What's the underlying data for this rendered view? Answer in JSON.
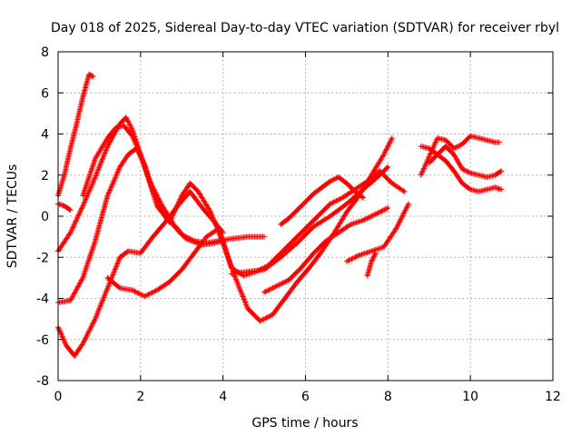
{
  "chart_data": {
    "type": "scatter",
    "title": "Day 018 of 2025, Sidereal Day-to-day VTEC variation (SDTVAR) for receiver rbyl",
    "xlabel": "GPS time / hours",
    "ylabel": "SDTVAR / TECUs",
    "xlim": [
      0,
      12
    ],
    "ylim": [
      -8,
      8
    ],
    "xticks": [
      "0",
      "2",
      "4",
      "6",
      "8",
      "10",
      "12"
    ],
    "yticks": [
      "-8",
      "-6",
      "-4",
      "-2",
      "0",
      "2",
      "4",
      "6",
      "8"
    ],
    "grid": true,
    "marker": "+",
    "color": "#ff0000",
    "series": [
      {
        "x": [
          0.0,
          0.15,
          0.3,
          0.45,
          0.6,
          0.75,
          0.85
        ],
        "y": [
          1.0,
          2.0,
          3.3,
          4.5,
          5.8,
          6.9,
          6.8
        ]
      },
      {
        "x": [
          0.0,
          0.15,
          0.3
        ],
        "y": [
          0.6,
          0.5,
          0.3
        ]
      },
      {
        "x": [
          0.0,
          0.3,
          0.6,
          0.9,
          1.2,
          1.5,
          1.65,
          1.8,
          2.0,
          2.2,
          2.5,
          2.8,
          3.1,
          3.5,
          3.8,
          4.0
        ],
        "y": [
          -1.7,
          -0.8,
          0.5,
          1.9,
          3.4,
          4.5,
          4.8,
          4.2,
          3.0,
          1.8,
          0.6,
          -0.4,
          -1.1,
          -1.4,
          -1.3,
          -1.2
        ]
      },
      {
        "x": [
          0.0,
          0.3,
          0.6,
          0.9,
          1.2,
          1.5,
          1.7,
          1.9,
          2.1,
          2.3,
          2.6,
          3.0,
          3.3,
          3.6,
          3.9,
          4.2,
          4.6,
          5.0
        ],
        "y": [
          -4.2,
          -4.1,
          -3.0,
          -1.2,
          1.0,
          2.4,
          3.0,
          3.3,
          2.5,
          1.2,
          0.0,
          -0.9,
          -1.2,
          -1.3,
          -1.2,
          -1.1,
          -1.0,
          -1.0
        ]
      },
      {
        "x": [
          0.0,
          0.2,
          0.4,
          0.6,
          0.9,
          1.2,
          1.5,
          1.7,
          2.0,
          2.3,
          2.6,
          2.9,
          3.2,
          3.5,
          3.8,
          4.0
        ],
        "y": [
          -5.4,
          -6.3,
          -6.8,
          -6.2,
          -5.0,
          -3.5,
          -2.0,
          -1.7,
          -1.8,
          -1.0,
          -0.3,
          0.5,
          1.2,
          0.4,
          -0.3,
          -0.8
        ]
      },
      {
        "x": [
          0.6,
          0.9,
          1.2,
          1.4,
          1.6,
          1.8,
          2.0,
          2.2,
          2.4,
          2.7,
          3.0,
          3.2,
          3.4,
          3.7,
          4.0,
          4.3,
          4.6,
          4.9,
          5.2,
          5.5,
          5.8,
          6.1,
          6.4,
          6.7,
          7.0,
          7.3,
          7.6,
          7.9,
          8.1
        ],
        "y": [
          1.0,
          2.8,
          3.8,
          4.3,
          4.4,
          3.9,
          3.0,
          1.8,
          0.5,
          -0.3,
          1.0,
          1.6,
          1.2,
          0.2,
          -1.3,
          -3.0,
          -4.5,
          -5.1,
          -4.8,
          -4.0,
          -3.2,
          -2.5,
          -1.7,
          -0.8,
          0.2,
          1.0,
          2.0,
          3.0,
          3.8
        ]
      },
      {
        "x": [
          1.2,
          1.5,
          1.8,
          2.1,
          2.4,
          2.7,
          3.0,
          3.3,
          3.6,
          3.9,
          4.2,
          4.5,
          4.8,
          5.1,
          5.4,
          5.7,
          6.0,
          6.3,
          6.6,
          6.9,
          7.2,
          7.5,
          7.8,
          8.1,
          8.4
        ],
        "y": [
          -3.0,
          -3.5,
          -3.6,
          -3.9,
          -3.6,
          -3.2,
          -2.6,
          -1.8,
          -1.0,
          -0.6,
          -2.5,
          -2.9,
          -2.7,
          -2.4,
          -1.8,
          -1.2,
          -0.6,
          0.0,
          0.6,
          0.9,
          1.3,
          1.7,
          2.2,
          1.6,
          1.2
        ]
      },
      {
        "x": [
          4.2,
          4.6,
          5.0,
          5.4,
          5.8,
          6.2,
          6.6,
          7.0,
          7.4,
          7.8,
          8.0
        ],
        "y": [
          -2.8,
          -2.7,
          -2.6,
          -2.0,
          -1.3,
          -0.5,
          0.0,
          0.6,
          1.3,
          2.0,
          2.4
        ]
      },
      {
        "x": [
          5.0,
          5.3,
          5.6,
          5.9,
          6.2,
          6.5,
          6.8,
          7.1,
          7.4,
          7.7,
          8.0
        ],
        "y": [
          -3.7,
          -3.4,
          -3.1,
          -2.5,
          -1.8,
          -1.2,
          -0.8,
          -0.4,
          -0.2,
          0.1,
          0.4
        ]
      },
      {
        "x": [
          5.4,
          5.6,
          5.8,
          6.0,
          6.2,
          6.4,
          6.6,
          6.8,
          7.0,
          7.2,
          7.4
        ],
        "y": [
          -0.4,
          -0.1,
          0.3,
          0.7,
          1.1,
          1.4,
          1.7,
          1.9,
          1.6,
          1.2,
          0.9
        ]
      },
      {
        "x": [
          7.0,
          7.3,
          7.6,
          7.9,
          8.2,
          8.5
        ],
        "y": [
          -2.2,
          -1.9,
          -1.7,
          -1.5,
          -0.6,
          0.6
        ]
      },
      {
        "x": [
          7.5,
          7.6,
          7.7
        ],
        "y": [
          -2.9,
          -2.2,
          -1.8
        ]
      },
      {
        "x": [
          8.8,
          9.0,
          9.2,
          9.4,
          9.6,
          9.8,
          10.0,
          10.2,
          10.4,
          10.6,
          10.7
        ],
        "y": [
          2.0,
          2.9,
          3.8,
          3.7,
          3.3,
          3.5,
          3.9,
          3.8,
          3.7,
          3.6,
          3.6
        ]
      },
      {
        "x": [
          8.8,
          9.0,
          9.2,
          9.4,
          9.6,
          9.8,
          10.0,
          10.2,
          10.4,
          10.6,
          10.75
        ],
        "y": [
          3.4,
          3.3,
          3.0,
          2.7,
          2.2,
          1.6,
          1.3,
          1.2,
          1.3,
          1.4,
          1.3
        ]
      },
      {
        "x": [
          9.0,
          9.2,
          9.4,
          9.6,
          9.8,
          10.0,
          10.2,
          10.4,
          10.6,
          10.75
        ],
        "y": [
          2.6,
          3.0,
          3.4,
          3.0,
          2.3,
          2.1,
          2.0,
          1.9,
          2.0,
          2.2
        ]
      }
    ]
  }
}
